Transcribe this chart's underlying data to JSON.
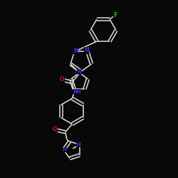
{
  "bg": "#080808",
  "bc": "#d8d8d8",
  "nc": "#3333ff",
  "oc": "#cc1111",
  "fc": "#22bb22",
  "lw": 1.15,
  "fs": 5.5,
  "xlim": [
    0,
    10
  ],
  "ylim": [
    0,
    10
  ],
  "figsize": [
    2.5,
    2.5
  ],
  "dpi": 100
}
